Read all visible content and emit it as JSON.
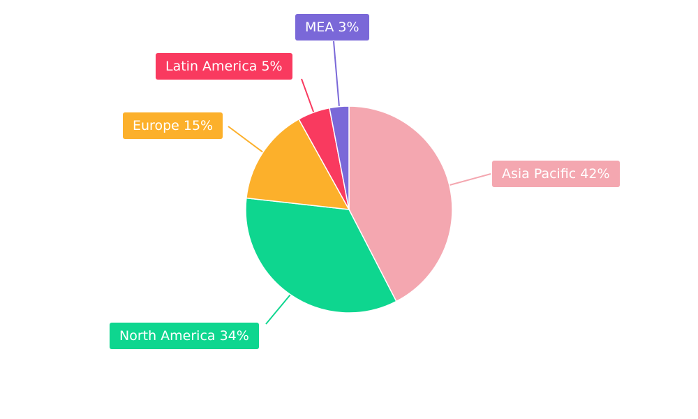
{
  "chart_data": {
    "type": "pie",
    "title": "",
    "start_angle_deg_from_top": 0,
    "direction": "clockwise",
    "background": "#ffffff",
    "label_style": "callout-boxes-with-leader-lines",
    "items": [
      {
        "name": "Asia Pacific",
        "value": 42,
        "unit": "%",
        "label": "Asia Pacific 42%",
        "color": "#F4A7B0"
      },
      {
        "name": "North America",
        "value": 34,
        "unit": "%",
        "label": "North America 34%",
        "color": "#0ED68F"
      },
      {
        "name": "Europe",
        "value": 15,
        "unit": "%",
        "label": "Europe 15%",
        "color": "#FCB02B"
      },
      {
        "name": "Latin America",
        "value": 5,
        "unit": "%",
        "label": "Latin America 5%",
        "color": "#F93A5F"
      },
      {
        "name": "MEA",
        "value": 3,
        "unit": "%",
        "label": "MEA 3%",
        "color": "#7A68D8"
      }
    ]
  }
}
